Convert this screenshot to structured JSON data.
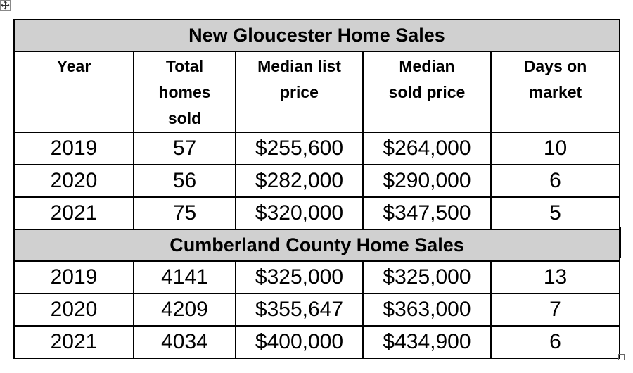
{
  "sections": [
    {
      "title": "New Gloucester Home Sales",
      "header": [
        [
          "Year"
        ],
        [
          "Total",
          "homes",
          "sold"
        ],
        [
          "Median list",
          "price"
        ],
        [
          "Median",
          "sold price"
        ],
        [
          "Days on",
          "market"
        ]
      ],
      "rows": [
        [
          "2019",
          "57",
          "$255,600",
          "$264,000",
          "10"
        ],
        [
          "2020",
          "56",
          "$282,000",
          "$290,000",
          "6"
        ],
        [
          "2021",
          "75",
          "$320,000",
          "$347,500",
          "5"
        ]
      ]
    },
    {
      "title": "Cumberland County Home Sales",
      "rows": [
        [
          "2019",
          "4141",
          "$325,000",
          "$325,000",
          "13"
        ],
        [
          "2020",
          "4209",
          "$355,647",
          "$363,000",
          "7"
        ],
        [
          "2021",
          "4034",
          "$400,000",
          "$434,900",
          "6"
        ]
      ]
    }
  ]
}
